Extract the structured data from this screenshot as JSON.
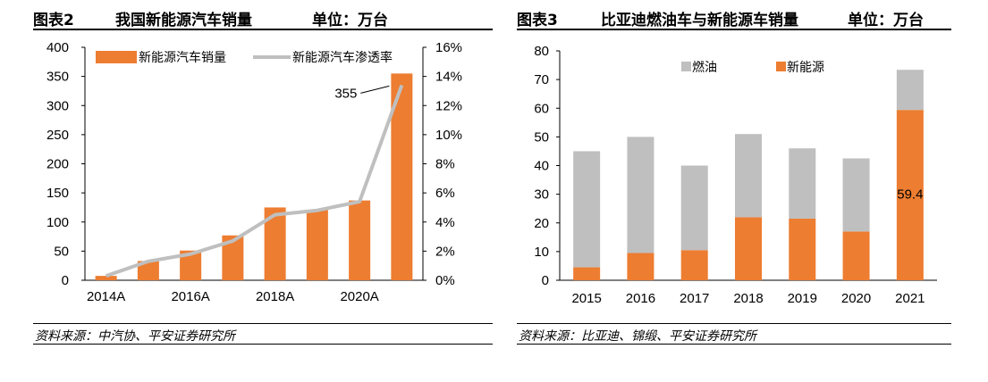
{
  "left": {
    "fig_no": "图表2",
    "title": "我国新能源汽车销量",
    "unit": "单位：万台",
    "source": "资料来源：中汽协、平安证券研究所"
  },
  "right": {
    "fig_no": "图表3",
    "title": "比亚迪燃油车与新能源车销量",
    "unit": "单位：万台",
    "source": "资料来源：比亚迪、锦缎、平安证券研究所"
  },
  "chart_data": [
    {
      "type": "bar",
      "categories": [
        "2014A",
        "2015A",
        "2016A",
        "2017A",
        "2018A",
        "2019A",
        "2020A",
        "2021A"
      ],
      "x_tick_labels": [
        "2014A",
        "2016A",
        "2018A",
        "2020A"
      ],
      "series": [
        {
          "name": "新能源汽车销量",
          "type": "bar",
          "axis": "left",
          "color": "#ED7D31",
          "values": [
            7.5,
            33,
            51,
            77,
            125,
            121,
            137,
            355
          ]
        },
        {
          "name": "新能源汽车渗透率",
          "type": "line",
          "axis": "right",
          "color": "#BFBFBF",
          "values": [
            0.3,
            1.3,
            1.8,
            2.7,
            4.5,
            4.8,
            5.4,
            13.4
          ]
        }
      ],
      "ylim": [
        0,
        400
      ],
      "yticks": [
        0,
        50,
        100,
        150,
        200,
        250,
        300,
        350,
        400
      ],
      "y2lim": [
        0,
        16
      ],
      "y2ticks": [
        "0%",
        "2%",
        "4%",
        "6%",
        "8%",
        "10%",
        "12%",
        "14%",
        "16%"
      ],
      "annotations": [
        {
          "label": "355",
          "category": "2021A"
        }
      ],
      "legend_placement": "top"
    },
    {
      "type": "bar",
      "stacked": true,
      "categories": [
        "2015",
        "2016",
        "2017",
        "2018",
        "2019",
        "2020",
        "2021"
      ],
      "series": [
        {
          "name": "新能源",
          "color": "#ED7D31",
          "values": [
            4.5,
            9.5,
            10.5,
            22,
            21.5,
            17,
            59.4
          ]
        },
        {
          "name": "燃油",
          "color": "#BFBFBF",
          "values": [
            40.5,
            40.5,
            29.5,
            29,
            24.5,
            25.5,
            14
          ]
        }
      ],
      "ylim": [
        0,
        80
      ],
      "yticks": [
        0,
        10,
        20,
        30,
        40,
        50,
        60,
        70,
        80
      ],
      "annotations": [
        {
          "label": "59.4",
          "category": "2021"
        }
      ],
      "legend_placement": "top"
    }
  ]
}
